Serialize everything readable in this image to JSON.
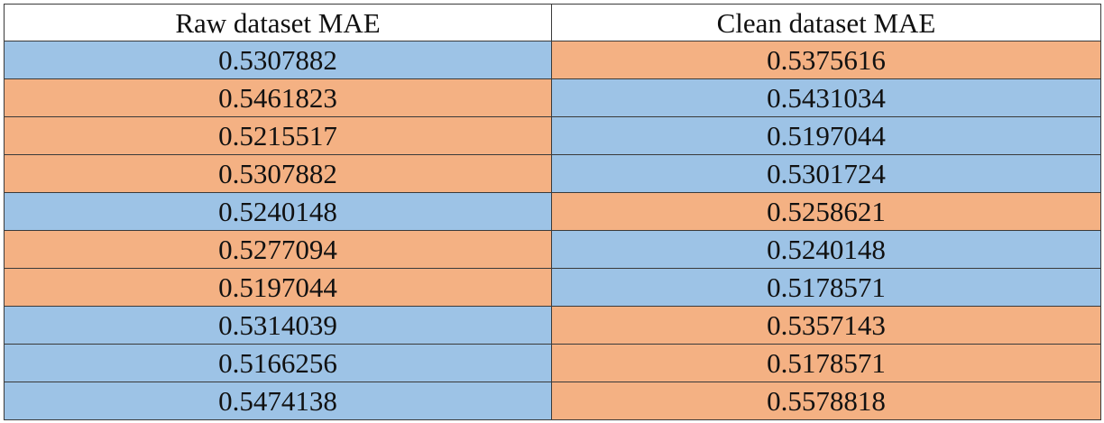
{
  "table": {
    "headers": [
      "Raw dataset MAE",
      "Clean dataset MAE"
    ],
    "colors": {
      "blue": "#9dc3e6",
      "orange": "#f4b183"
    },
    "rows": [
      {
        "raw": "0.5307882",
        "raw_color": "blue",
        "clean": "0.5375616",
        "clean_color": "orange"
      },
      {
        "raw": "0.5461823",
        "raw_color": "orange",
        "clean": "0.5431034",
        "clean_color": "blue"
      },
      {
        "raw": "0.5215517",
        "raw_color": "orange",
        "clean": "0.5197044",
        "clean_color": "blue"
      },
      {
        "raw": "0.5307882",
        "raw_color": "orange",
        "clean": "0.5301724",
        "clean_color": "blue"
      },
      {
        "raw": "0.5240148",
        "raw_color": "blue",
        "clean": "0.5258621",
        "clean_color": "orange"
      },
      {
        "raw": "0.5277094",
        "raw_color": "orange",
        "clean": "0.5240148",
        "clean_color": "blue"
      },
      {
        "raw": "0.5197044",
        "raw_color": "orange",
        "clean": "0.5178571",
        "clean_color": "blue"
      },
      {
        "raw": "0.5314039",
        "raw_color": "blue",
        "clean": "0.5357143",
        "clean_color": "orange"
      },
      {
        "raw": "0.5166256",
        "raw_color": "blue",
        "clean": "0.5178571",
        "clean_color": "orange"
      },
      {
        "raw": "0.5474138",
        "raw_color": "blue",
        "clean": "0.5578818",
        "clean_color": "orange"
      }
    ]
  }
}
